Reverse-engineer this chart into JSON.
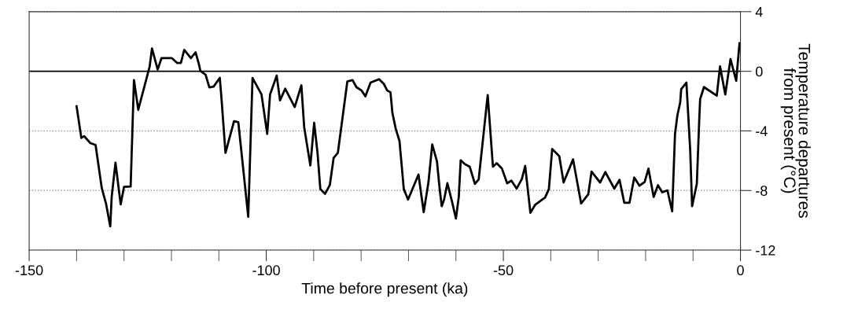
{
  "chart_data": {
    "type": "line",
    "xlabel": "Time before present (ka)",
    "ylabel": "Temperature departures\nfrom present (°C)",
    "x": [
      -140.0,
      -139.0,
      -138.4,
      -137.1,
      -136.0,
      -134.7,
      -133.8,
      -132.9,
      -132.6,
      -131.8,
      -130.7,
      -130.0,
      -128.6,
      -127.9,
      -127.0,
      -124.6,
      -124.1,
      -122.9,
      -122.1,
      -119.9,
      -118.8,
      -118.0,
      -117.3,
      -115.9,
      -114.9,
      -114.2,
      -113.9,
      -112.8,
      -112.0,
      -111.1,
      -109.8,
      -109.4,
      -108.6,
      -106.8,
      -105.9,
      -103.8,
      -102.9,
      -101.0,
      -99.8,
      -99.2,
      -97.8,
      -97.1,
      -96.0,
      -94.0,
      -92.6,
      -92.0,
      -90.7,
      -89.9,
      -89.2,
      -88.6,
      -87.6,
      -86.6,
      -85.8,
      -84.9,
      -82.9,
      -81.8,
      -81.0,
      -79.9,
      -79.1,
      -78.0,
      -76.2,
      -75.2,
      -74.5,
      -73.8,
      -73.4,
      -72.7,
      -71.9,
      -71.0,
      -70.1,
      -67.9,
      -66.8,
      -65.8,
      -65.0,
      -64.0,
      -63.4,
      -63.0,
      -62.5,
      -61.8,
      -60.8,
      -60.0,
      -59.4,
      -59.0,
      -58.1,
      -57.1,
      -56.0,
      -55.2,
      -53.3,
      -52.2,
      -51.4,
      -50.3,
      -49.2,
      -48.3,
      -47.2,
      -46.1,
      -45.4,
      -44.3,
      -43.3,
      -41.2,
      -40.4,
      -39.7,
      -38.2,
      -37.3,
      -35.3,
      -33.6,
      -32.1,
      -31.4,
      -29.6,
      -28.5,
      -26.6,
      -25.5,
      -24.5,
      -23.4,
      -22.4,
      -21.3,
      -20.2,
      -19.4,
      -18.3,
      -17.4,
      -16.5,
      -15.4,
      -14.4,
      -13.8,
      -13.3,
      -12.7,
      -12.5,
      -11.4,
      -10.6,
      -10.2,
      -9.2,
      -8.7,
      -8.5,
      -7.7,
      -5.0,
      -4.3,
      -3.2,
      -2.1,
      -0.9,
      -0.2
    ],
    "series": [
      {
        "color": "#000000",
        "values": [
          -2.35,
          -4.47,
          -4.35,
          -4.82,
          -4.94,
          -7.82,
          -8.87,
          -10.41,
          -8.43,
          -6.14,
          -8.93,
          -7.76,
          -7.73,
          -0.59,
          -2.58,
          0.3,
          1.53,
          0.12,
          0.88,
          0.88,
          0.56,
          0.56,
          1.44,
          0.88,
          1.27,
          0.47,
          0.03,
          -0.23,
          -1.08,
          -1.03,
          -0.44,
          -2.0,
          -5.47,
          -3.35,
          -3.41,
          -9.76,
          -0.45,
          -1.56,
          -4.2,
          -1.56,
          -0.29,
          -1.95,
          -1.17,
          -2.4,
          -0.94,
          -3.76,
          -6.32,
          -3.46,
          -5.44,
          -7.9,
          -8.22,
          -7.64,
          -5.82,
          -5.47,
          -0.68,
          -0.59,
          -1.06,
          -1.29,
          -1.68,
          -0.76,
          -0.53,
          -0.85,
          -1.29,
          -1.41,
          -2.79,
          -3.85,
          -4.69,
          -7.9,
          -8.61,
          -6.93,
          -9.45,
          -7.46,
          -4.91,
          -6.05,
          -7.99,
          -9.05,
          -8.61,
          -7.51,
          -8.78,
          -9.88,
          -8.43,
          -5.97,
          -6.23,
          -6.4,
          -7.55,
          -7.25,
          -1.59,
          -6.4,
          -6.17,
          -6.53,
          -7.51,
          -7.34,
          -7.87,
          -7.23,
          -6.35,
          -9.49,
          -8.96,
          -8.47,
          -7.9,
          -5.21,
          -5.7,
          -7.46,
          -5.91,
          -8.87,
          -8.26,
          -6.73,
          -7.46,
          -6.76,
          -7.87,
          -7.29,
          -8.82,
          -8.82,
          -7.13,
          -7.68,
          -7.43,
          -6.53,
          -8.43,
          -7.64,
          -8.12,
          -7.99,
          -9.4,
          -4.2,
          -2.96,
          -2.08,
          -1.2,
          -0.76,
          -5.26,
          -9.05,
          -7.55,
          -3.32,
          -1.87,
          -1.06,
          -1.64,
          0.33,
          -1.56,
          0.82,
          -0.64,
          1.88
        ]
      }
    ],
    "xlim": [
      -150,
      0
    ],
    "xticks": [
      -150,
      {
        "value": -140,
        "label": null
      },
      {
        "value": -130,
        "label": null
      },
      {
        "value": -120,
        "label": null
      },
      {
        "value": -110,
        "label": null
      },
      -100,
      {
        "value": -90,
        "label": null
      },
      {
        "value": -80,
        "label": null
      },
      {
        "value": -70,
        "label": null
      },
      {
        "value": -60,
        "label": null
      },
      -50,
      {
        "value": -40,
        "label": null
      },
      {
        "value": -30,
        "label": null
      },
      {
        "value": -20,
        "label": null
      },
      {
        "value": -10,
        "label": null
      },
      0
    ],
    "ylim": [
      -12,
      4
    ],
    "yticks": [
      -12,
      -8,
      -4,
      0,
      4
    ],
    "grid": "y",
    "ref_lines": [
      {
        "axis": "y",
        "value": 0,
        "color": "#000000",
        "line_style": "solid"
      }
    ],
    "line_style": "solid",
    "marker": "none"
  }
}
